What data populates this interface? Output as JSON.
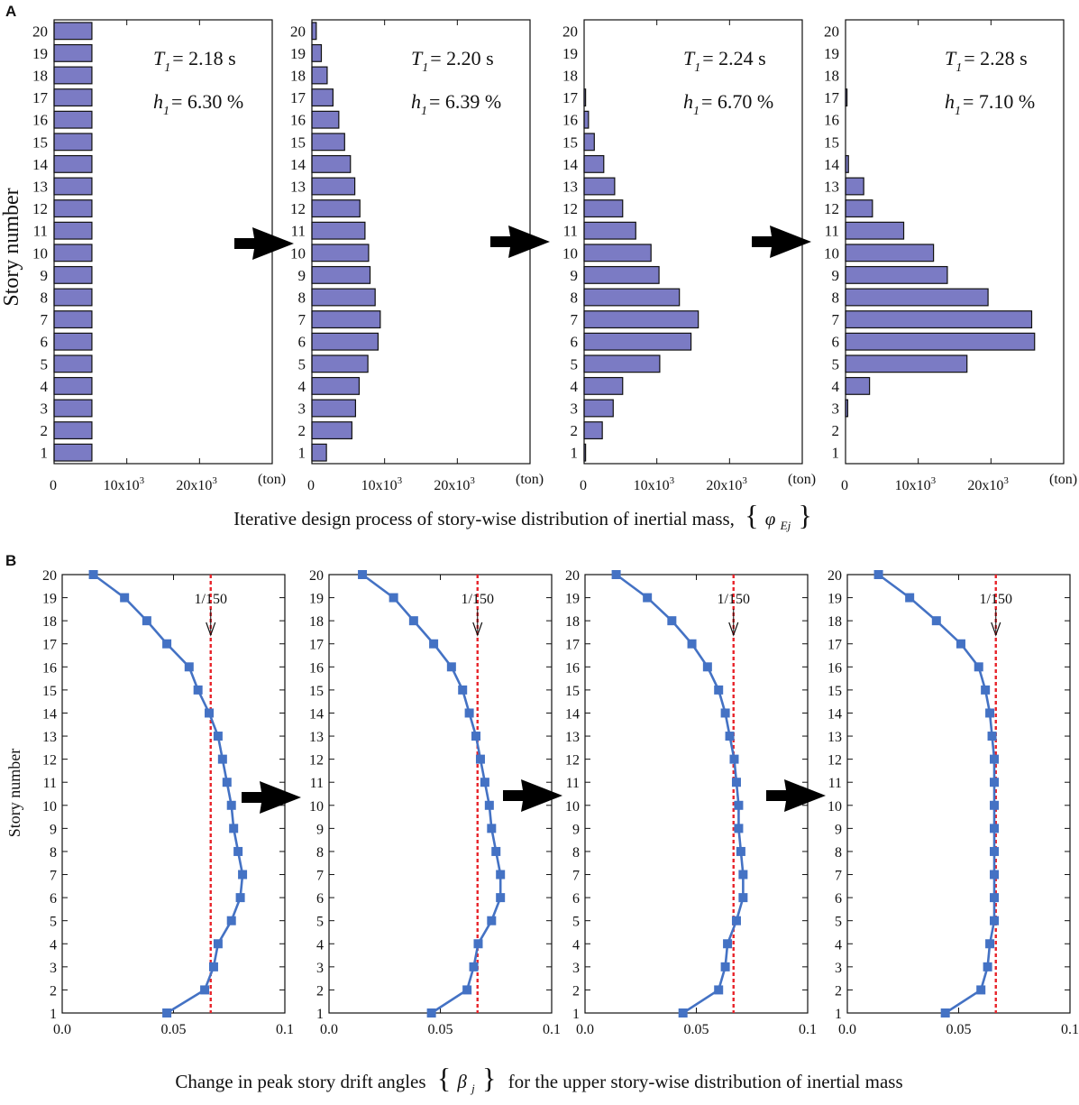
{
  "figure": {
    "panel_a_label": "A",
    "panel_b_label": "B",
    "caption_a_text": "Iterative design process of story-wise distribution of inertial mass,",
    "caption_a_brace_open": "{",
    "caption_a_symbol": "φ",
    "caption_a_subscript": "Ej",
    "caption_a_brace_close": "}",
    "caption_b_text_before": "Change in peak story drift angles",
    "caption_b_brace_open": "{",
    "caption_b_symbol": "β",
    "caption_b_subscript": "j",
    "caption_b_brace_close": "}",
    "caption_b_text_after": "for the upper story-wise distribution of inertial mass"
  },
  "chart_data": [
    {
      "type": "bar",
      "orientation": "horizontal",
      "panel": "A",
      "ylabel": "Story number",
      "xlabel": "",
      "x_unit_label": "(ton)",
      "xlim": [
        0,
        30000
      ],
      "xtick_labels": [
        "0",
        "10x10",
        "20x10"
      ],
      "xtick_exponent": "3",
      "categories": [
        "1",
        "2",
        "3",
        "4",
        "5",
        "6",
        "7",
        "8",
        "9",
        "10",
        "11",
        "12",
        "13",
        "14",
        "15",
        "16",
        "17",
        "18",
        "19",
        "20"
      ],
      "annotations": {
        "T_symbol": "T",
        "T_sub": "1",
        "T_text": "= 2.18 s",
        "h_symbol": "h",
        "h_sub": "1",
        "h_text": "= 6.30 %"
      },
      "values": [
        5200,
        5200,
        5200,
        5200,
        5200,
        5200,
        5200,
        5200,
        5200,
        5200,
        5200,
        5200,
        5200,
        5200,
        5200,
        5200,
        5200,
        5200,
        5200,
        5200
      ]
    },
    {
      "type": "bar",
      "orientation": "horizontal",
      "panel": "A",
      "xlabel": "",
      "x_unit_label": "(ton)",
      "xlim": [
        0,
        30000
      ],
      "xtick_labels": [
        "0",
        "10x10",
        "20x10"
      ],
      "xtick_exponent": "3",
      "categories": [
        "1",
        "2",
        "3",
        "4",
        "5",
        "6",
        "7",
        "8",
        "9",
        "10",
        "11",
        "12",
        "13",
        "14",
        "15",
        "16",
        "17",
        "18",
        "19",
        "20"
      ],
      "annotations": {
        "T_symbol": "T",
        "T_sub": "1",
        "T_text": "= 2.20 s",
        "h_symbol": "h",
        "h_sub": "1",
        "h_text": "= 6.39 %"
      },
      "values": [
        2000,
        5500,
        6000,
        6500,
        7700,
        9100,
        9400,
        8700,
        8000,
        7800,
        7300,
        6600,
        5900,
        5300,
        4500,
        3700,
        2900,
        2100,
        1300,
        600
      ]
    },
    {
      "type": "bar",
      "orientation": "horizontal",
      "panel": "A",
      "xlabel": "",
      "x_unit_label": "(ton)",
      "xlim": [
        0,
        30000
      ],
      "xtick_labels": [
        "0",
        "10x10",
        "20x10"
      ],
      "xtick_exponent": "3",
      "categories": [
        "1",
        "2",
        "3",
        "4",
        "5",
        "6",
        "7",
        "8",
        "9",
        "10",
        "11",
        "12",
        "13",
        "14",
        "15",
        "16",
        "17",
        "18",
        "19",
        "20"
      ],
      "annotations": {
        "T_symbol": "T",
        "T_sub": "1",
        "T_text": "= 2.24 s",
        "h_symbol": "h",
        "h_sub": "1",
        "h_text": "= 6.70 %"
      },
      "values": [
        200,
        2500,
        4000,
        5300,
        10400,
        14700,
        15700,
        13100,
        10300,
        9200,
        7100,
        5300,
        4200,
        2700,
        1400,
        600,
        200,
        0,
        0,
        0
      ]
    },
    {
      "type": "bar",
      "orientation": "horizontal",
      "panel": "A",
      "xlabel": "",
      "x_unit_label": "(ton)",
      "xlim": [
        0,
        30000
      ],
      "xtick_labels": [
        "0",
        "10x10",
        "20x10"
      ],
      "xtick_exponent": "3",
      "categories": [
        "1",
        "2",
        "3",
        "4",
        "5",
        "6",
        "7",
        "8",
        "9",
        "10",
        "11",
        "12",
        "13",
        "14",
        "15",
        "16",
        "17",
        "18",
        "19",
        "20"
      ],
      "annotations": {
        "T_symbol": "T",
        "T_sub": "1",
        "T_text": "= 2.28 s",
        "h_symbol": "h",
        "h_sub": "1",
        "h_text": "= 7.10 %"
      },
      "values": [
        0,
        0,
        300,
        3300,
        16700,
        26000,
        25600,
        19600,
        14000,
        12100,
        8000,
        3700,
        2500,
        400,
        0,
        0,
        200,
        0,
        0,
        0
      ]
    },
    {
      "type": "line",
      "panel": "B",
      "ylabel": "Story number",
      "xlabel": "",
      "xlim": [
        0,
        0.1
      ],
      "ylim": [
        1,
        20
      ],
      "xtick_labels": [
        "0.0",
        "0.05",
        "0.1"
      ],
      "ytick_labels": [
        "1",
        "2",
        "3",
        "4",
        "5",
        "6",
        "7",
        "8",
        "9",
        "10",
        "11",
        "12",
        "13",
        "14",
        "15",
        "16",
        "17",
        "18",
        "19",
        "20"
      ],
      "limit_value": 0.0667,
      "limit_label": "1/150",
      "series": [
        {
          "name": "peak story drift angle",
          "y": [
            1,
            2,
            3,
            4,
            5,
            6,
            7,
            8,
            9,
            10,
            11,
            12,
            13,
            14,
            15,
            16,
            17,
            18,
            19,
            20
          ],
          "x": [
            0.047,
            0.064,
            0.068,
            0.07,
            0.076,
            0.08,
            0.081,
            0.079,
            0.077,
            0.076,
            0.074,
            0.072,
            0.07,
            0.066,
            0.061,
            0.057,
            0.047,
            0.038,
            0.028,
            0.014
          ]
        }
      ]
    },
    {
      "type": "line",
      "panel": "B",
      "xlabel": "",
      "xlim": [
        0,
        0.1
      ],
      "ylim": [
        1,
        20
      ],
      "xtick_labels": [
        "0.0",
        "0.05",
        "0.1"
      ],
      "ytick_labels": [
        "1",
        "2",
        "3",
        "4",
        "5",
        "6",
        "7",
        "8",
        "9",
        "10",
        "11",
        "12",
        "13",
        "14",
        "15",
        "16",
        "17",
        "18",
        "19",
        "20"
      ],
      "limit_value": 0.0667,
      "limit_label": "1/150",
      "series": [
        {
          "name": "peak story drift angle",
          "y": [
            1,
            2,
            3,
            4,
            5,
            6,
            7,
            8,
            9,
            10,
            11,
            12,
            13,
            14,
            15,
            16,
            17,
            18,
            19,
            20
          ],
          "x": [
            0.046,
            0.062,
            0.065,
            0.067,
            0.073,
            0.077,
            0.077,
            0.075,
            0.073,
            0.072,
            0.07,
            0.068,
            0.066,
            0.063,
            0.06,
            0.055,
            0.047,
            0.038,
            0.029,
            0.015
          ]
        }
      ]
    },
    {
      "type": "line",
      "panel": "B",
      "xlabel": "",
      "xlim": [
        0,
        0.1
      ],
      "ylim": [
        1,
        20
      ],
      "xtick_labels": [
        "0.0",
        "0.05",
        "0.1"
      ],
      "ytick_labels": [
        "1",
        "2",
        "3",
        "4",
        "5",
        "6",
        "7",
        "8",
        "9",
        "10",
        "11",
        "12",
        "13",
        "14",
        "15",
        "16",
        "17",
        "18",
        "19",
        "20"
      ],
      "limit_value": 0.0667,
      "limit_label": "1/150",
      "series": [
        {
          "name": "peak story drift angle",
          "y": [
            1,
            2,
            3,
            4,
            5,
            6,
            7,
            8,
            9,
            10,
            11,
            12,
            13,
            14,
            15,
            16,
            17,
            18,
            19,
            20
          ],
          "x": [
            0.044,
            0.06,
            0.063,
            0.064,
            0.068,
            0.071,
            0.071,
            0.07,
            0.069,
            0.069,
            0.068,
            0.067,
            0.065,
            0.063,
            0.06,
            0.055,
            0.048,
            0.039,
            0.028,
            0.014
          ]
        }
      ]
    },
    {
      "type": "line",
      "panel": "B",
      "xlabel": "",
      "xlim": [
        0,
        0.1
      ],
      "ylim": [
        1,
        20
      ],
      "xtick_labels": [
        "0.0",
        "0.05",
        "0.1"
      ],
      "ytick_labels": [
        "1",
        "2",
        "3",
        "4",
        "5",
        "6",
        "7",
        "8",
        "9",
        "10",
        "11",
        "12",
        "13",
        "14",
        "15",
        "16",
        "17",
        "18",
        "19",
        "20"
      ],
      "limit_value": 0.0667,
      "limit_label": "1/150",
      "series": [
        {
          "name": "peak story drift angle",
          "y": [
            1,
            2,
            3,
            4,
            5,
            6,
            7,
            8,
            9,
            10,
            11,
            12,
            13,
            14,
            15,
            16,
            17,
            18,
            19,
            20
          ],
          "x": [
            0.044,
            0.06,
            0.063,
            0.064,
            0.066,
            0.066,
            0.066,
            0.066,
            0.066,
            0.066,
            0.066,
            0.066,
            0.065,
            0.064,
            0.062,
            0.059,
            0.051,
            0.04,
            0.028,
            0.014
          ]
        }
      ]
    }
  ],
  "colors": {
    "bar_fill": "#7b7bc4",
    "bar_stroke": "#111111",
    "line": "#4472c4",
    "limit": "#e8232a",
    "axis": "#111111",
    "arrow": "#000000"
  }
}
